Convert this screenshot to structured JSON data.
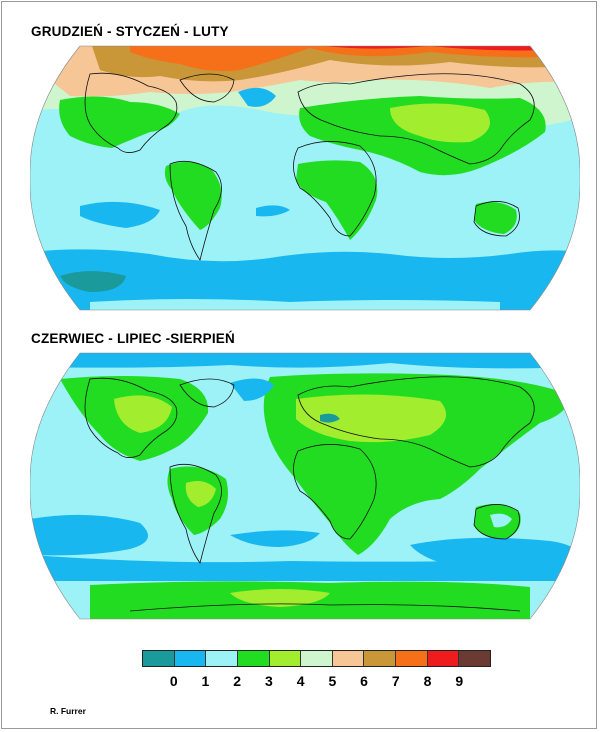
{
  "panels": [
    {
      "title": "GRUDZIEŃ - STYCZEŃ - LUTY"
    },
    {
      "title": "CZERWIEC - LIPIEC -SIERPIEŃ"
    }
  ],
  "legend": {
    "classes": [
      {
        "color": "#1a9a9a"
      },
      {
        "color": "#19b7ef"
      },
      {
        "color": "#9cf2f7"
      },
      {
        "color": "#22dc22"
      },
      {
        "color": "#a3ed2f"
      },
      {
        "color": "#cff5cf"
      },
      {
        "color": "#f6c697"
      },
      {
        "color": "#c99638"
      },
      {
        "color": "#f6701a"
      },
      {
        "color": "#ee1c1c"
      },
      {
        "color": "#6a3a33"
      }
    ],
    "tick_labels": [
      "0",
      "1",
      "2",
      "3",
      "4",
      "5",
      "6",
      "7",
      "8",
      "9"
    ]
  },
  "credit": "R. Furrer",
  "colors": {
    "ocean_base": "#9cf2f7",
    "land_outline": "#111111"
  }
}
